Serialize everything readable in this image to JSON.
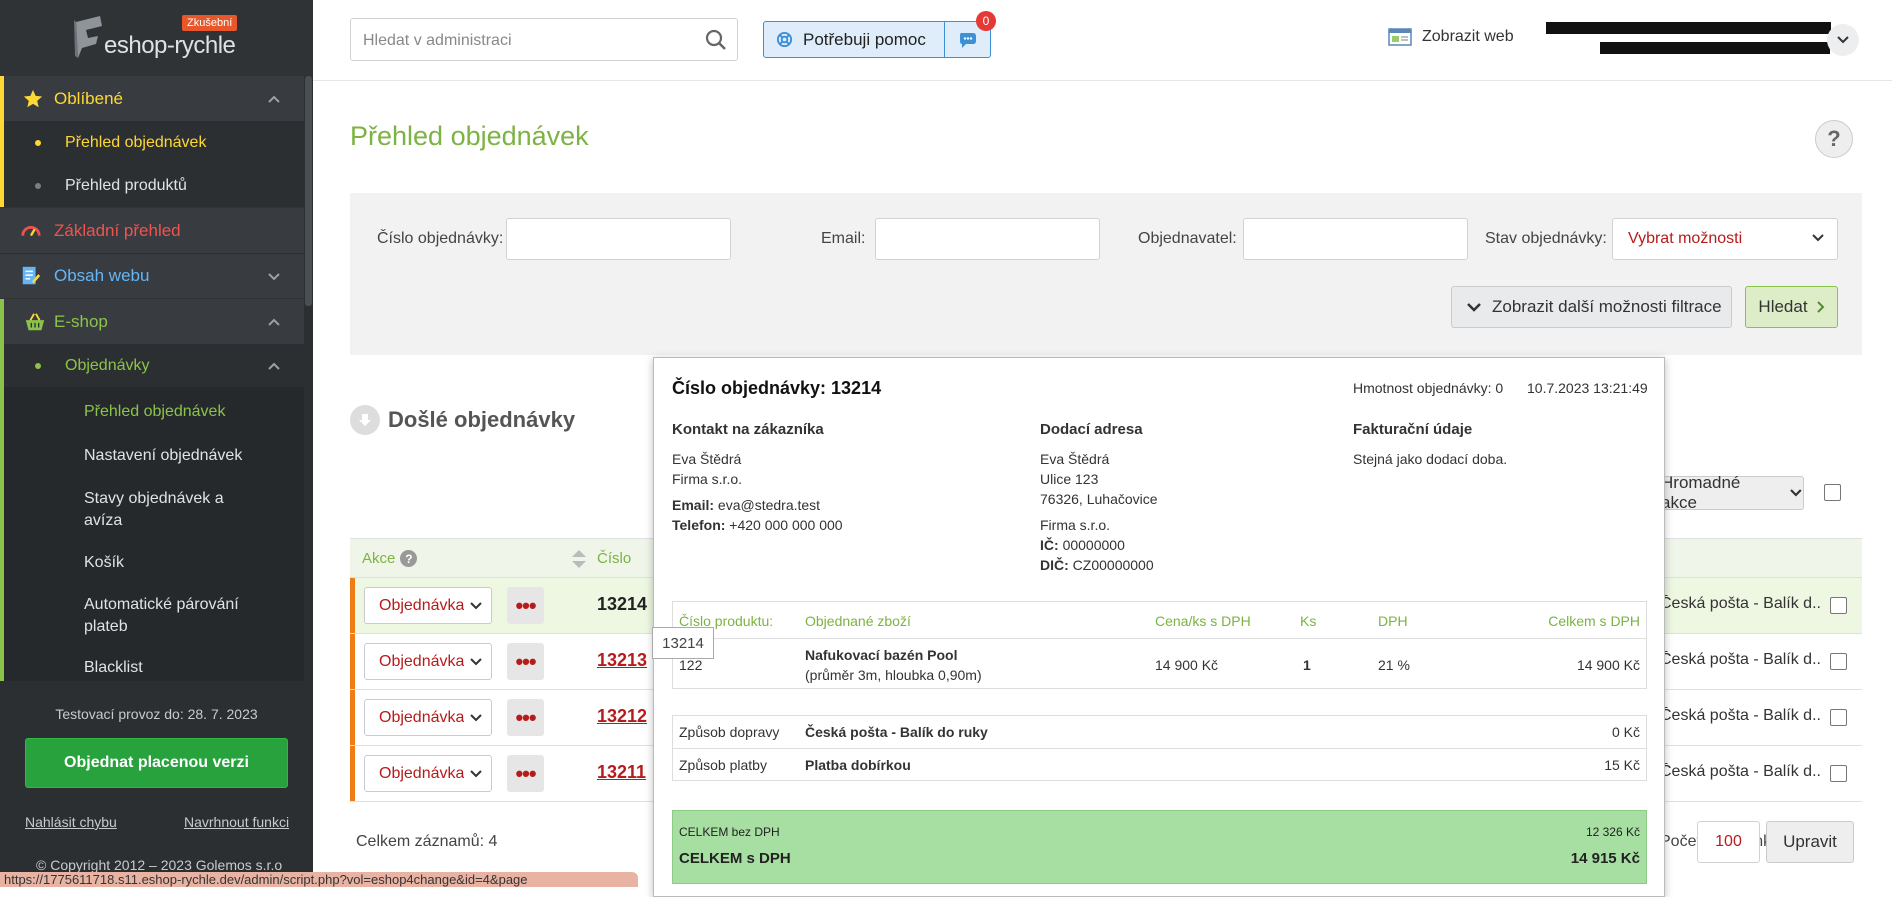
{
  "sidebar": {
    "logo_text": "eshop-rychle",
    "logo_badge": "Zkušební",
    "items": [
      {
        "label": "Oblíbené",
        "color": "#fdd835"
      },
      {
        "label": "Přehled objednávek"
      },
      {
        "label": "Přehled produktů"
      },
      {
        "label": "Základní přehled",
        "color": "#ef5350"
      },
      {
        "label": "Obsah webu",
        "color": "#64b5f6"
      },
      {
        "label": "E-shop",
        "color": "#8bc34a"
      },
      {
        "label": "Objednávky"
      },
      {
        "label": "Přehled objednávek"
      },
      {
        "label": "Nastavení objednávek"
      },
      {
        "label": "Stavy objednávek a avíza"
      },
      {
        "label": "Košík"
      },
      {
        "label": "Automatické párování plateb"
      },
      {
        "label": "Blacklist"
      }
    ],
    "trial_text": "Testovací provoz do: 28. 7. 2023",
    "order_button": "Objednat placenou verzi",
    "report_bug": "Nahlásit chybu",
    "suggest_feature": "Navrhnout funkci",
    "copyright": "© Copyright 2012 – 2023 Golemos s.r.o",
    "status_url": "https://1775611718.s11.eshop-rychle.dev/admin/script.php?vol=eshop4change&id=4&page"
  },
  "header": {
    "search_placeholder": "Hledat v administraci",
    "help_button": "Potřebuji pomoc",
    "help_badge": "0",
    "show_web": "Zobrazit web"
  },
  "page": {
    "title": "Přehled objednávek"
  },
  "filter": {
    "order_number_label": "Číslo objednávky:",
    "email_label": "Email:",
    "customer_label": "Objednavatel:",
    "state_label": "Stav objednávky:",
    "state_value": "Vybrat možnosti",
    "more_filters": "Zobrazit další možnosti filtrace",
    "search_button": "Hledat"
  },
  "orders": {
    "section_title": "Došlé objednávky",
    "bulk_actions": "Hromadné akce",
    "col_action": "Akce",
    "col_number": "Číslo",
    "rows": [
      {
        "state": "Objednávka",
        "number": "13214",
        "shipping": "Česká pošta - Balík d..."
      },
      {
        "state": "Objednávka",
        "number": "13213",
        "shipping": "Česká pošta - Balík d..."
      },
      {
        "state": "Objednávka",
        "number": "13212",
        "shipping": "Česká pošta - Balík d..."
      },
      {
        "state": "Objednávka",
        "number": "13211",
        "shipping": "Česká pošta - Balík d..."
      }
    ],
    "tooltip": "13214",
    "total_records": "Celkem záznamů: 4",
    "per_page_label": "Počet na stránku:",
    "per_page_value": "100",
    "update_button": "Upravit"
  },
  "popup": {
    "title": "Číslo objednávky: 13214",
    "weight": "Hmotnost objednávky: 0",
    "datetime": "10.7.2023 13:21:49",
    "contact_head": "Kontakt na zákazníka",
    "contact_name": "Eva Štědrá",
    "contact_company": "Firma s.r.o.",
    "email_label": "Email:",
    "email": "eva@stedra.test",
    "phone_label": "Telefon:",
    "phone": "+420 000 000 000",
    "delivery_head": "Dodací adresa",
    "delivery_name": "Eva Štědrá",
    "delivery_street": "Ulice 123",
    "delivery_city": "76326, Luhačovice",
    "delivery_company": "Firma s.r.o.",
    "ic_label": "IČ:",
    "ic": "00000000",
    "dic_label": "DIČ:",
    "dic": "CZ00000000",
    "billing_head": "Fakturační údaje",
    "billing_text": "Stejná jako dodací doba.",
    "table": {
      "h_code": "Číslo produktu:",
      "h_item": "Objednané zboží",
      "h_price": "Cena/ks s DPH",
      "h_qty": "Ks",
      "h_vat": "DPH",
      "h_total": "Celkem s DPH",
      "code": "122",
      "item": "Nafukovací bazén Pool",
      "item_detail": "(průměr 3m, hloubka 0,90m)",
      "price": "14 900 Kč",
      "qty": "1",
      "vat": "21 %",
      "total": "14 900 Kč"
    },
    "shipping_label": "Způsob dopravy",
    "shipping_value": "Česká pošta - Balík do ruky",
    "shipping_price": "0 Kč",
    "payment_label": "Způsob platby",
    "payment_value": "Platba dobírkou",
    "payment_price": "15 Kč",
    "total_novat_label": "CELKEM bez DPH",
    "total_novat": "12 326 Kč",
    "total_vat_label": "CELKEM s DPH",
    "total_vat": "14 915 Kč"
  }
}
